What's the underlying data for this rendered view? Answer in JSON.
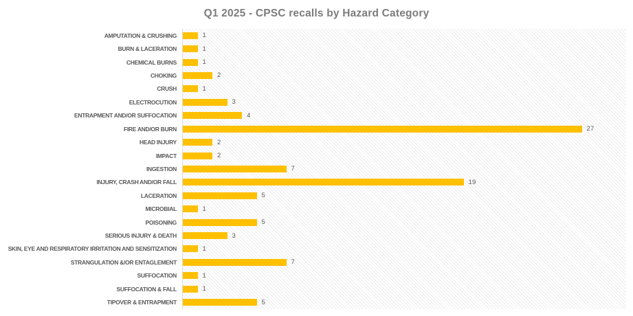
{
  "chart_data": {
    "type": "bar",
    "orientation": "horizontal",
    "title": "Q1 2025 - CPSC recalls by Hazard Category",
    "categories": [
      "AMPUTATION & CRUSHING",
      "BURN & LACERATION",
      "CHEMICAL BURNS",
      "CHOKING",
      "CRUSH",
      "ELECTROCUTION",
      "ENTRAPMENT AND/OR SUFFOCATION",
      "FIRE AND/OR BURN",
      "HEAD INJURY",
      "IMPACT",
      "INGESTION",
      "INJURY, CRASH AND/OR FALL",
      "LACERATION",
      "MICROBIAL",
      "POISONING",
      "SERIOUS INJURY & DEATH",
      "SKIN, EYE AND RESPIRATORY IRRITATION AND SENSITIZATION",
      "STRANGULATION &/OR ENTAGLEMENT",
      "SUFFOCATION",
      "SUFFOCATION & FALL",
      "TIPOVER & ENTRAPMENT"
    ],
    "values": [
      1,
      1,
      1,
      2,
      1,
      3,
      4,
      27,
      2,
      2,
      7,
      19,
      5,
      1,
      5,
      3,
      1,
      7,
      1,
      1,
      5
    ],
    "xlabel": "",
    "ylabel": "",
    "xlim": [
      0,
      30
    ],
    "grid": false,
    "legend": false,
    "data_labels": true,
    "bar_color": "#FFC000",
    "title_color": "#7C7C7C",
    "label_color": "#595959",
    "plot_background": "diagonal-hatch"
  }
}
